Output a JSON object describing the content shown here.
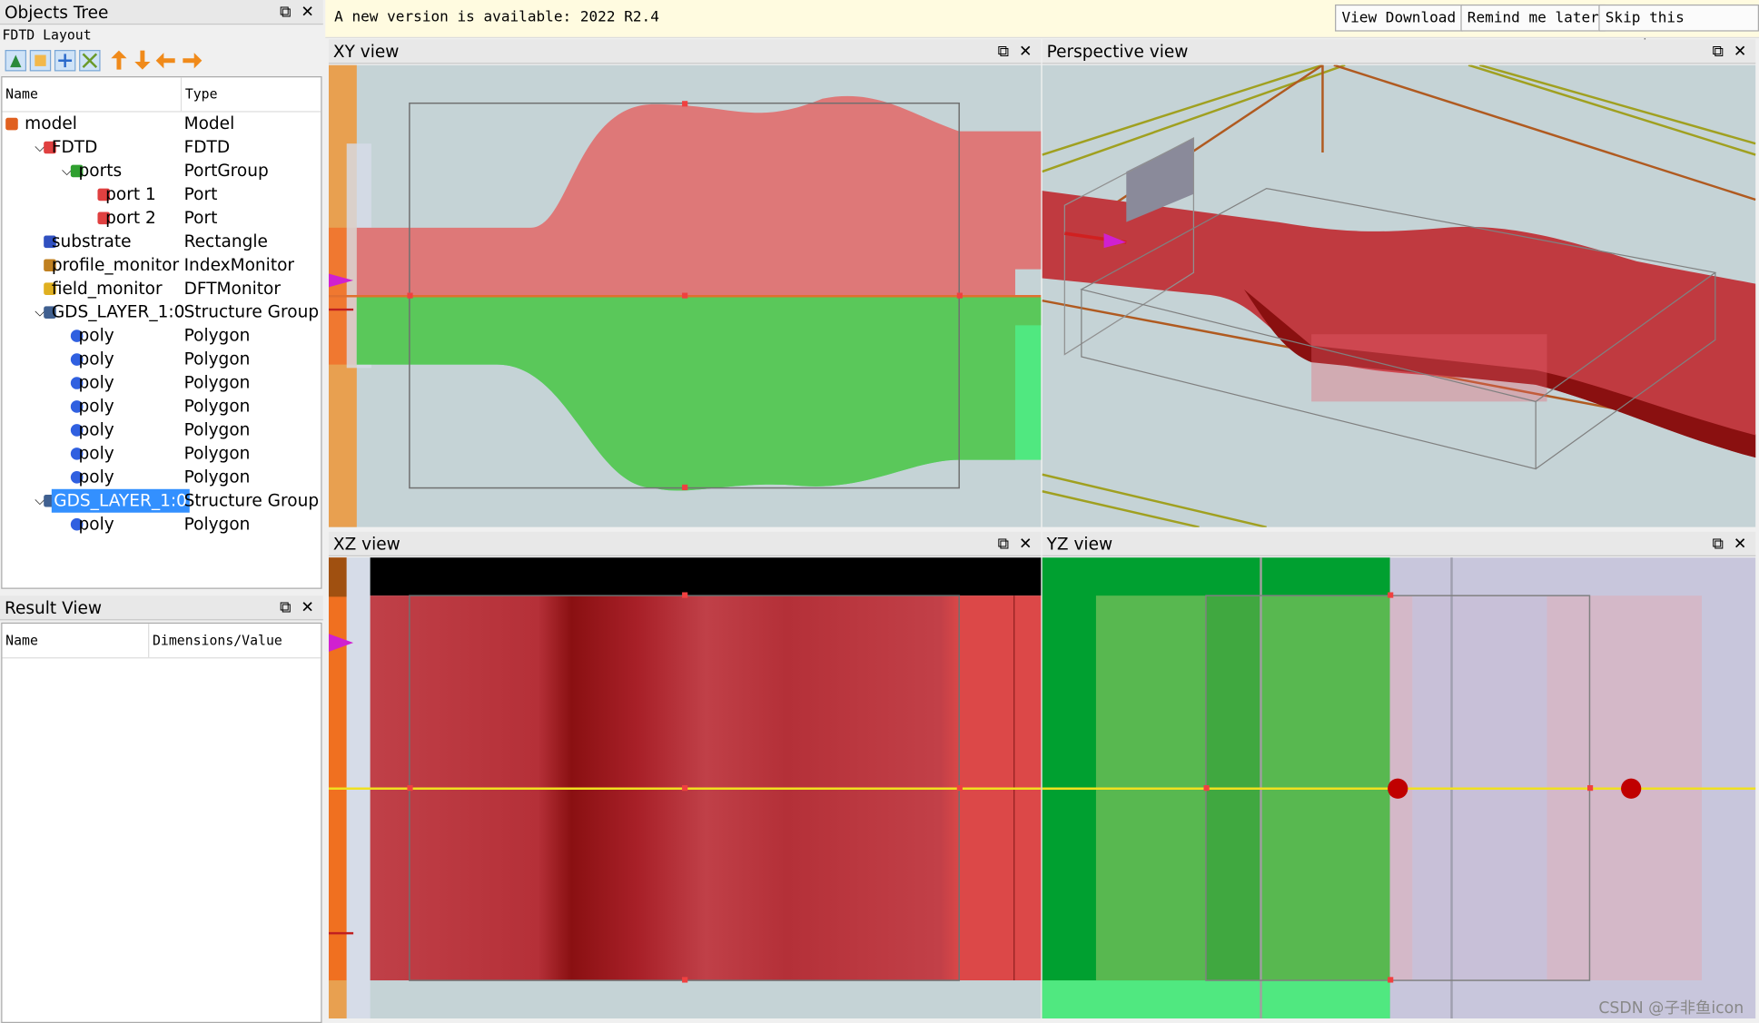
{
  "objects_tree": {
    "title": "Objects Tree",
    "subtitle": "FDTD Layout",
    "columns": [
      "Name",
      "Type"
    ],
    "rows": [
      [
        "model",
        "Model"
      ],
      [
        "FDTD",
        "FDTD"
      ],
      [
        "ports",
        "PortGroup"
      ],
      [
        "port 1",
        "Port"
      ],
      [
        "port 2",
        "Port"
      ],
      [
        "substrate",
        "Rectangle"
      ],
      [
        "profile_monitor",
        "IndexMonitor"
      ],
      [
        "field_monitor",
        "DFTMonitor"
      ],
      [
        "GDS_LAYER_1:0",
        "Structure Group"
      ],
      [
        "poly",
        "Polygon"
      ],
      [
        "poly",
        "Polygon"
      ],
      [
        "poly",
        "Polygon"
      ],
      [
        "poly",
        "Polygon"
      ],
      [
        "poly",
        "Polygon"
      ],
      [
        "poly",
        "Polygon"
      ],
      [
        "poly",
        "Polygon"
      ],
      [
        "GDS_LAYER_1:0",
        "Structure Group"
      ],
      [
        "poly",
        "Polygon"
      ]
    ]
  },
  "result_view": {
    "title": "Result View",
    "columns": [
      "Name",
      "Dimensions/Value"
    ]
  },
  "notification": {
    "message": "A new version is available: 2022 R2.4",
    "buttons": [
      "View Download",
      "Remind me later",
      "Skip this version"
    ]
  },
  "views": [
    "XY view",
    "Perspective view",
    "XZ view",
    "YZ view"
  ],
  "watermark": "CSDN @子非鱼icon"
}
